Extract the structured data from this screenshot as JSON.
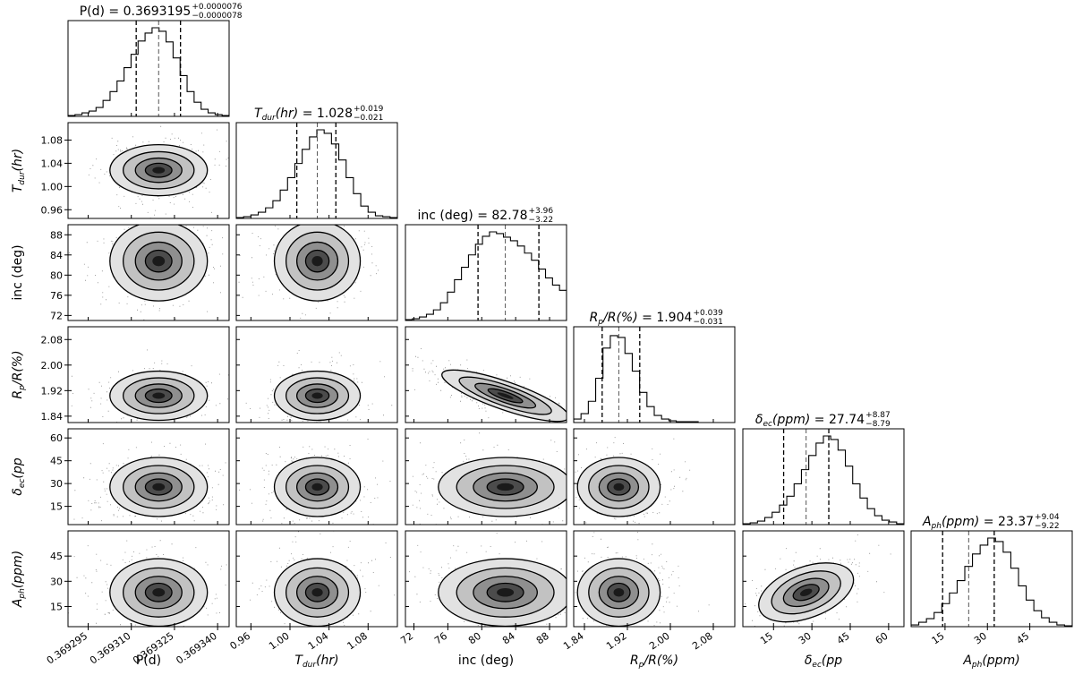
{
  "chart_data": {
    "type": "corner",
    "parameters": [
      {
        "key": "P",
        "axis_main": "P(d)",
        "axis_sub": "",
        "axis_post": "",
        "title_main": "P(d)",
        "title_sub": "",
        "title_post": "",
        "value": "0.3693195",
        "err_plus": "+0.0000076",
        "err_minus": "−0.0000078",
        "median": 0.3693195,
        "lo": 0.3693117,
        "hi": 0.3693271,
        "range": [
          0.369288,
          0.369344
        ],
        "ticks": [
          "0.369295",
          "0.369310",
          "0.369325",
          "0.369340"
        ]
      },
      {
        "key": "Tdur",
        "axis_main": "T",
        "axis_sub": "dur",
        "axis_post": "(hr)",
        "title_main": "T",
        "title_sub": "dur",
        "title_post": "(hr)",
        "value": "1.028",
        "err_plus": "+0.019",
        "err_minus": "−0.021",
        "median": 1.028,
        "lo": 1.007,
        "hi": 1.047,
        "range": [
          0.945,
          1.11
        ],
        "ticks": [
          "0.96",
          "1.00",
          "1.04",
          "1.08"
        ]
      },
      {
        "key": "inc",
        "axis_main": "inc (deg)",
        "axis_sub": "",
        "axis_post": "",
        "title_main": "inc (deg)",
        "title_sub": "",
        "title_post": "",
        "value": "82.78",
        "err_plus": "+3.96",
        "err_minus": "−3.22",
        "median": 82.78,
        "lo": 79.56,
        "hi": 86.74,
        "range": [
          71,
          90
        ],
        "ticks": [
          "72",
          "76",
          "80",
          "84",
          "88"
        ]
      },
      {
        "key": "RpRs",
        "axis_main": "R",
        "axis_sub": "p",
        "axis_post": "/R(%)",
        "title_main": "R",
        "title_sub": "p",
        "title_post": "/R(%)",
        "value": "1.904",
        "err_plus": "+0.039",
        "err_minus": "−0.031",
        "median": 1.904,
        "lo": 1.873,
        "hi": 1.943,
        "range": [
          1.82,
          2.12
        ],
        "ticks": [
          "1.84",
          "1.92",
          "2.00",
          "2.08"
        ]
      },
      {
        "key": "dec",
        "axis_main": "δ",
        "axis_sub": "ec",
        "axis_post": "(pp",
        "title_main": "δ",
        "title_sub": "ec",
        "title_post": "(ppm)",
        "value": "27.74",
        "err_plus": "+8.87",
        "err_minus": "−8.79",
        "median": 27.74,
        "lo": 18.95,
        "hi": 36.61,
        "range": [
          3,
          66
        ],
        "ticks": [
          "15",
          "30",
          "45",
          "60"
        ]
      },
      {
        "key": "Aph",
        "axis_main": "A",
        "axis_sub": "ph",
        "axis_post": "(ppm)",
        "title_main": "A",
        "title_sub": "ph",
        "title_post": "(ppm)",
        "value": "23.37",
        "err_plus": "+9.04",
        "err_minus": "−9.22",
        "median": 23.37,
        "lo": 14.15,
        "hi": 32.41,
        "range": [
          3,
          60
        ],
        "ticks": [
          "15",
          "30",
          "45"
        ]
      }
    ],
    "histograms": [
      [
        1,
        2,
        4,
        6,
        10,
        18,
        28,
        40,
        55,
        70,
        85,
        94,
        100,
        96,
        84,
        66,
        46,
        28,
        16,
        8,
        4,
        2,
        1
      ],
      [
        1,
        2,
        4,
        7,
        12,
        20,
        32,
        46,
        62,
        78,
        92,
        100,
        96,
        84,
        66,
        46,
        28,
        14,
        7,
        3,
        2,
        1
      ],
      [
        1,
        2,
        4,
        7,
        12,
        20,
        32,
        46,
        60,
        74,
        86,
        95,
        100,
        98,
        94,
        90,
        84,
        76,
        68,
        58,
        48,
        40,
        34
      ],
      [
        4,
        10,
        24,
        50,
        84,
        98,
        96,
        78,
        58,
        34,
        18,
        8,
        4,
        2,
        1,
        1,
        1,
        0,
        0,
        0,
        0,
        0
      ],
      [
        1,
        2,
        4,
        8,
        14,
        22,
        32,
        46,
        62,
        78,
        92,
        100,
        96,
        84,
        66,
        46,
        30,
        18,
        10,
        5,
        3,
        1
      ],
      [
        2,
        5,
        9,
        16,
        26,
        38,
        52,
        68,
        82,
        92,
        100,
        96,
        84,
        66,
        46,
        30,
        18,
        10,
        5,
        2,
        1
      ]
    ],
    "correlations": {
      "3_2": -0.78,
      "5_4": 0.45
    }
  }
}
